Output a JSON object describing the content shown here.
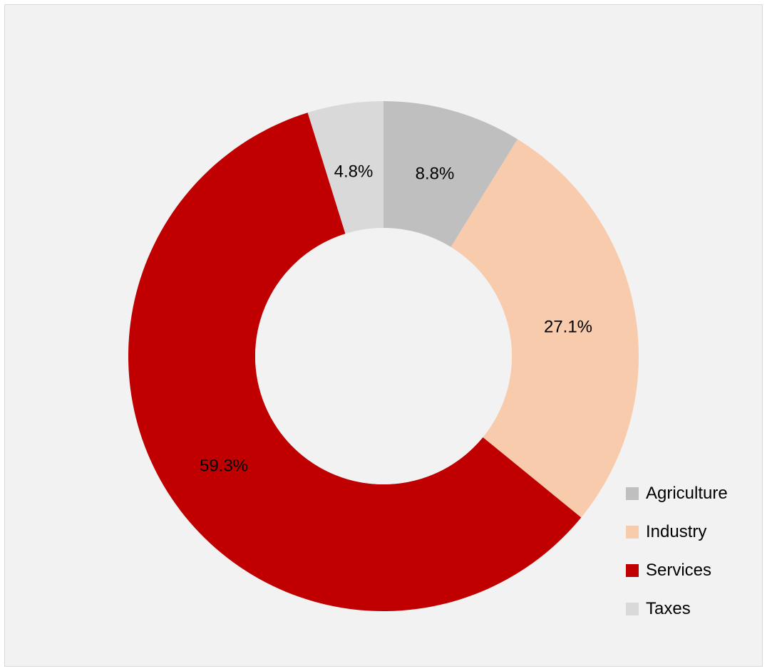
{
  "chart_data": {
    "type": "pie",
    "variant": "donut",
    "categories": [
      "Agriculture",
      "Industry",
      "Services",
      "Taxes"
    ],
    "values": [
      8.8,
      27.1,
      59.3,
      4.8
    ],
    "value_labels": [
      "8.8%",
      "27.1%",
      "59.3%",
      "4.8%"
    ],
    "colors": [
      "#bfbfbf",
      "#f8cbad",
      "#c00000",
      "#d9d9d9"
    ],
    "legend_position": "bottom-right",
    "start_angle": "top, clockwise"
  },
  "background": "#f2f2f2"
}
